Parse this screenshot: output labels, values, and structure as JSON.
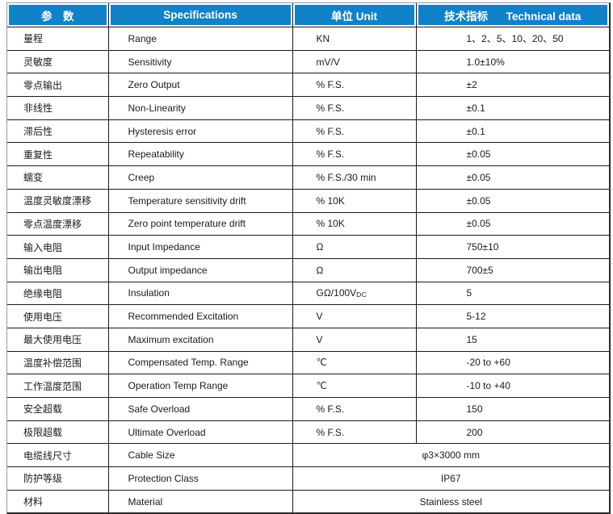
{
  "colors": {
    "header_bg": "#1082C8",
    "header_text": "#ffffff",
    "body_text": "#1a1a1a",
    "grid_line": "#1a1a1a",
    "outer_border_light": "#9a9a9a",
    "outer_border_dark": "#2a2a2a"
  },
  "table": {
    "headers": [
      "参　数",
      "Specifications",
      "单位 Unit",
      "技术指标      Technical data"
    ],
    "rows": [
      {
        "param": "量程",
        "spec": "Range",
        "unit": "KN",
        "value": "1、2、5、10、20、50"
      },
      {
        "param": "灵敏度",
        "spec": "Sensitivity",
        "unit": "mV/V",
        "value": "1.0±10%"
      },
      {
        "param": "零点输出",
        "spec": "Zero Output",
        "unit": "% F.S.",
        "value": "±2"
      },
      {
        "param": "非线性",
        "spec": "Non-Linearity",
        "unit": "% F.S.",
        "value": "±0.1"
      },
      {
        "param": "滞后性",
        "spec": "Hysteresis error",
        "unit": "% F.S.",
        "value": "±0.1"
      },
      {
        "param": "重复性",
        "spec": "Repeatability",
        "unit": "% F.S.",
        "value": "±0.05"
      },
      {
        "param": "蠕变",
        "spec": "Creep",
        "unit": "% F.S./30 min",
        "value": "±0.05"
      },
      {
        "param": "温度灵敏度漂移",
        "spec": "Temperature sensitivity drift",
        "unit": "% 10K",
        "value": "±0.05"
      },
      {
        "param": "零点温度漂移",
        "spec": "Zero point temperature drift",
        "unit": "% 10K",
        "value": "±0.05"
      },
      {
        "param": "输入电阻",
        "spec": "Input Impedance",
        "unit": "Ω",
        "value": "750±10"
      },
      {
        "param": "输出电阻",
        "spec": "Output impedance",
        "unit": "Ω",
        "value": "700±5"
      },
      {
        "param": "绝缘电阻",
        "spec": "Insulation",
        "unit": "GΩ/100V",
        "unit_sub": "DC",
        "value": "5"
      },
      {
        "param": "使用电压",
        "spec": "Recommended Excitation",
        "unit": "V",
        "value": "5-12"
      },
      {
        "param": "最大使用电压",
        "spec": "Maximum excitation",
        "unit": "V",
        "value": "15"
      },
      {
        "param": "温度补偿范围",
        "spec": "Compensated Temp. Range",
        "unit": "℃",
        "value": "-20 to +60"
      },
      {
        "param": "工作温度范围",
        "spec": "Operation Temp Range",
        "unit": "℃",
        "value": "-10 to +40"
      },
      {
        "param": "安全超载",
        "spec": "Safe Overload",
        "unit": "% F.S.",
        "value": "150"
      },
      {
        "param": "极限超载",
        "spec": "Ultimate Overload",
        "unit": "% F.S.",
        "value": "200"
      },
      {
        "param": "电缆线尺寸",
        "spec": "Cable Size",
        "merged": "φ3×3000 mm"
      },
      {
        "param": "防护等级",
        "spec": "Protection Class",
        "merged": "IP67"
      },
      {
        "param": "材料",
        "spec": "Material",
        "merged": "Stainless steel"
      }
    ]
  }
}
